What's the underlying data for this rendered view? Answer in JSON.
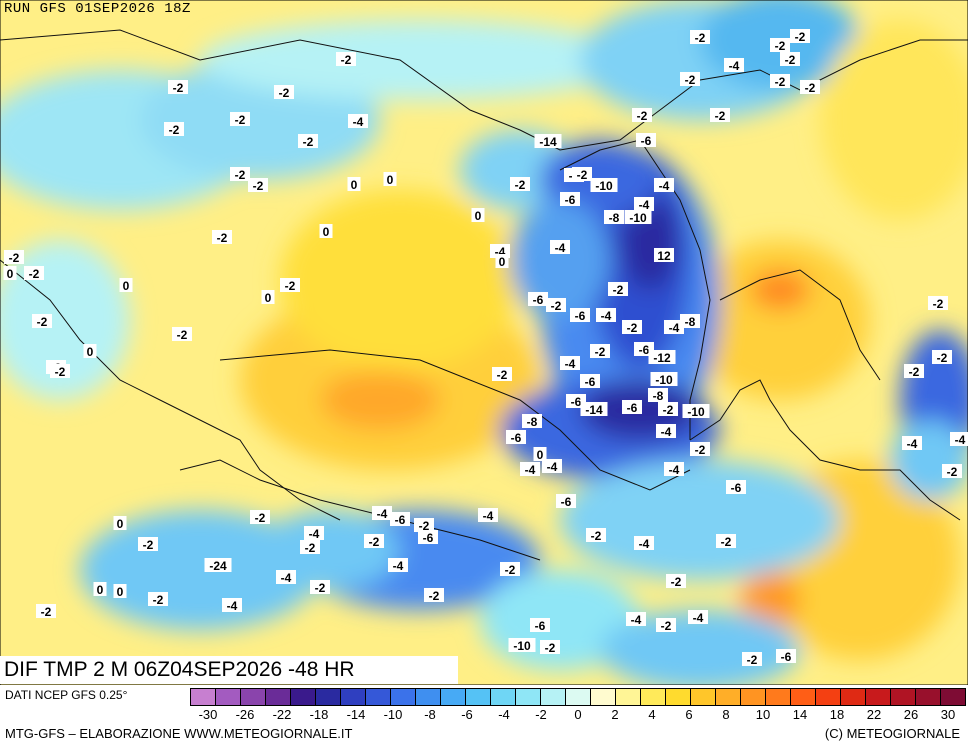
{
  "header": {
    "run_label": "RUN GFS 01SEP2026 18Z"
  },
  "map": {
    "field_title": "DIF TMP 2 M 06Z04SEP2026 -48 HR",
    "labels": [
      "-2",
      "-2",
      "-2",
      "-2",
      "-2",
      "-2",
      "-4",
      "-2",
      "-2",
      "-2",
      "0",
      "0",
      "0",
      "-2",
      "-2",
      "0",
      "0",
      "-2",
      "0",
      "-2",
      "-2",
      "0",
      "-2",
      "-2",
      "0",
      "-4",
      "0",
      "-2",
      "-6",
      "-2",
      "-10",
      "-6",
      "-4",
      "-8",
      "-10",
      "12",
      "-6",
      "-14",
      "-2",
      "-4",
      "-4",
      "-6",
      "-2",
      "-6",
      "-4",
      "-2",
      "-2",
      "-4",
      "-8",
      "-2",
      "-4",
      "-6",
      "-12",
      "-6",
      "-10",
      "-8",
      "-6",
      "-14",
      "-6",
      "-2",
      "-10",
      "-8",
      "-4",
      "-6",
      "0",
      "-4",
      "-4",
      "-2",
      "-2",
      "-6",
      "-4",
      "-6",
      "-2",
      "-4",
      "-2",
      "-2",
      "0",
      "-2",
      "-24",
      "-2",
      "-4",
      "-2",
      "-4",
      "0",
      "0",
      "-2",
      "-2",
      "-4",
      "-2",
      "-4",
      "-6",
      "-2",
      "-6",
      "-2",
      "-4",
      "-4",
      "-2",
      "-2",
      "-4",
      "-2",
      "-4",
      "-6",
      "-2",
      "-10",
      "-2",
      "-6",
      "-2",
      "-2",
      "-2",
      "-4",
      "-4",
      "-2",
      "-2",
      "-2",
      "-2",
      "-2",
      "-4",
      "-2",
      "-2",
      "-2",
      "-2"
    ]
  },
  "legend": {
    "source_label": "DATI NCEP GFS 0.25°",
    "scale_colors": [
      "#c77fd0",
      "#a35bc0",
      "#8a44ac",
      "#6a2c98",
      "#3a1a8c",
      "#2a2aa0",
      "#2f3fc0",
      "#3558d8",
      "#3b72ea",
      "#3f8ff0",
      "#47aaf5",
      "#55c2f5",
      "#6fd6f5",
      "#8fe6f6",
      "#b6f2f5",
      "#dcfaf2",
      "#fffbcf",
      "#fff596",
      "#ffea5a",
      "#ffdb2e",
      "#ffc62a",
      "#ffae28",
      "#ff9422",
      "#ff7a1c",
      "#ff5e16",
      "#f44012",
      "#df2a14",
      "#c81a1c",
      "#b01424",
      "#98102c",
      "#7e0c34"
    ],
    "ticks": [
      "-30",
      "-26",
      "-22",
      "-18",
      "-14",
      "-10",
      "-8",
      "-6",
      "-4",
      "-2",
      "0",
      "2",
      "4",
      "6",
      "8",
      "10",
      "14",
      "18",
      "22",
      "26",
      "30"
    ],
    "credit_left": "MTG-GFS – ELABORAZIONE WWW.METEOGIORNALE.IT",
    "credit_right": "(C) METEOGIORNALE"
  }
}
